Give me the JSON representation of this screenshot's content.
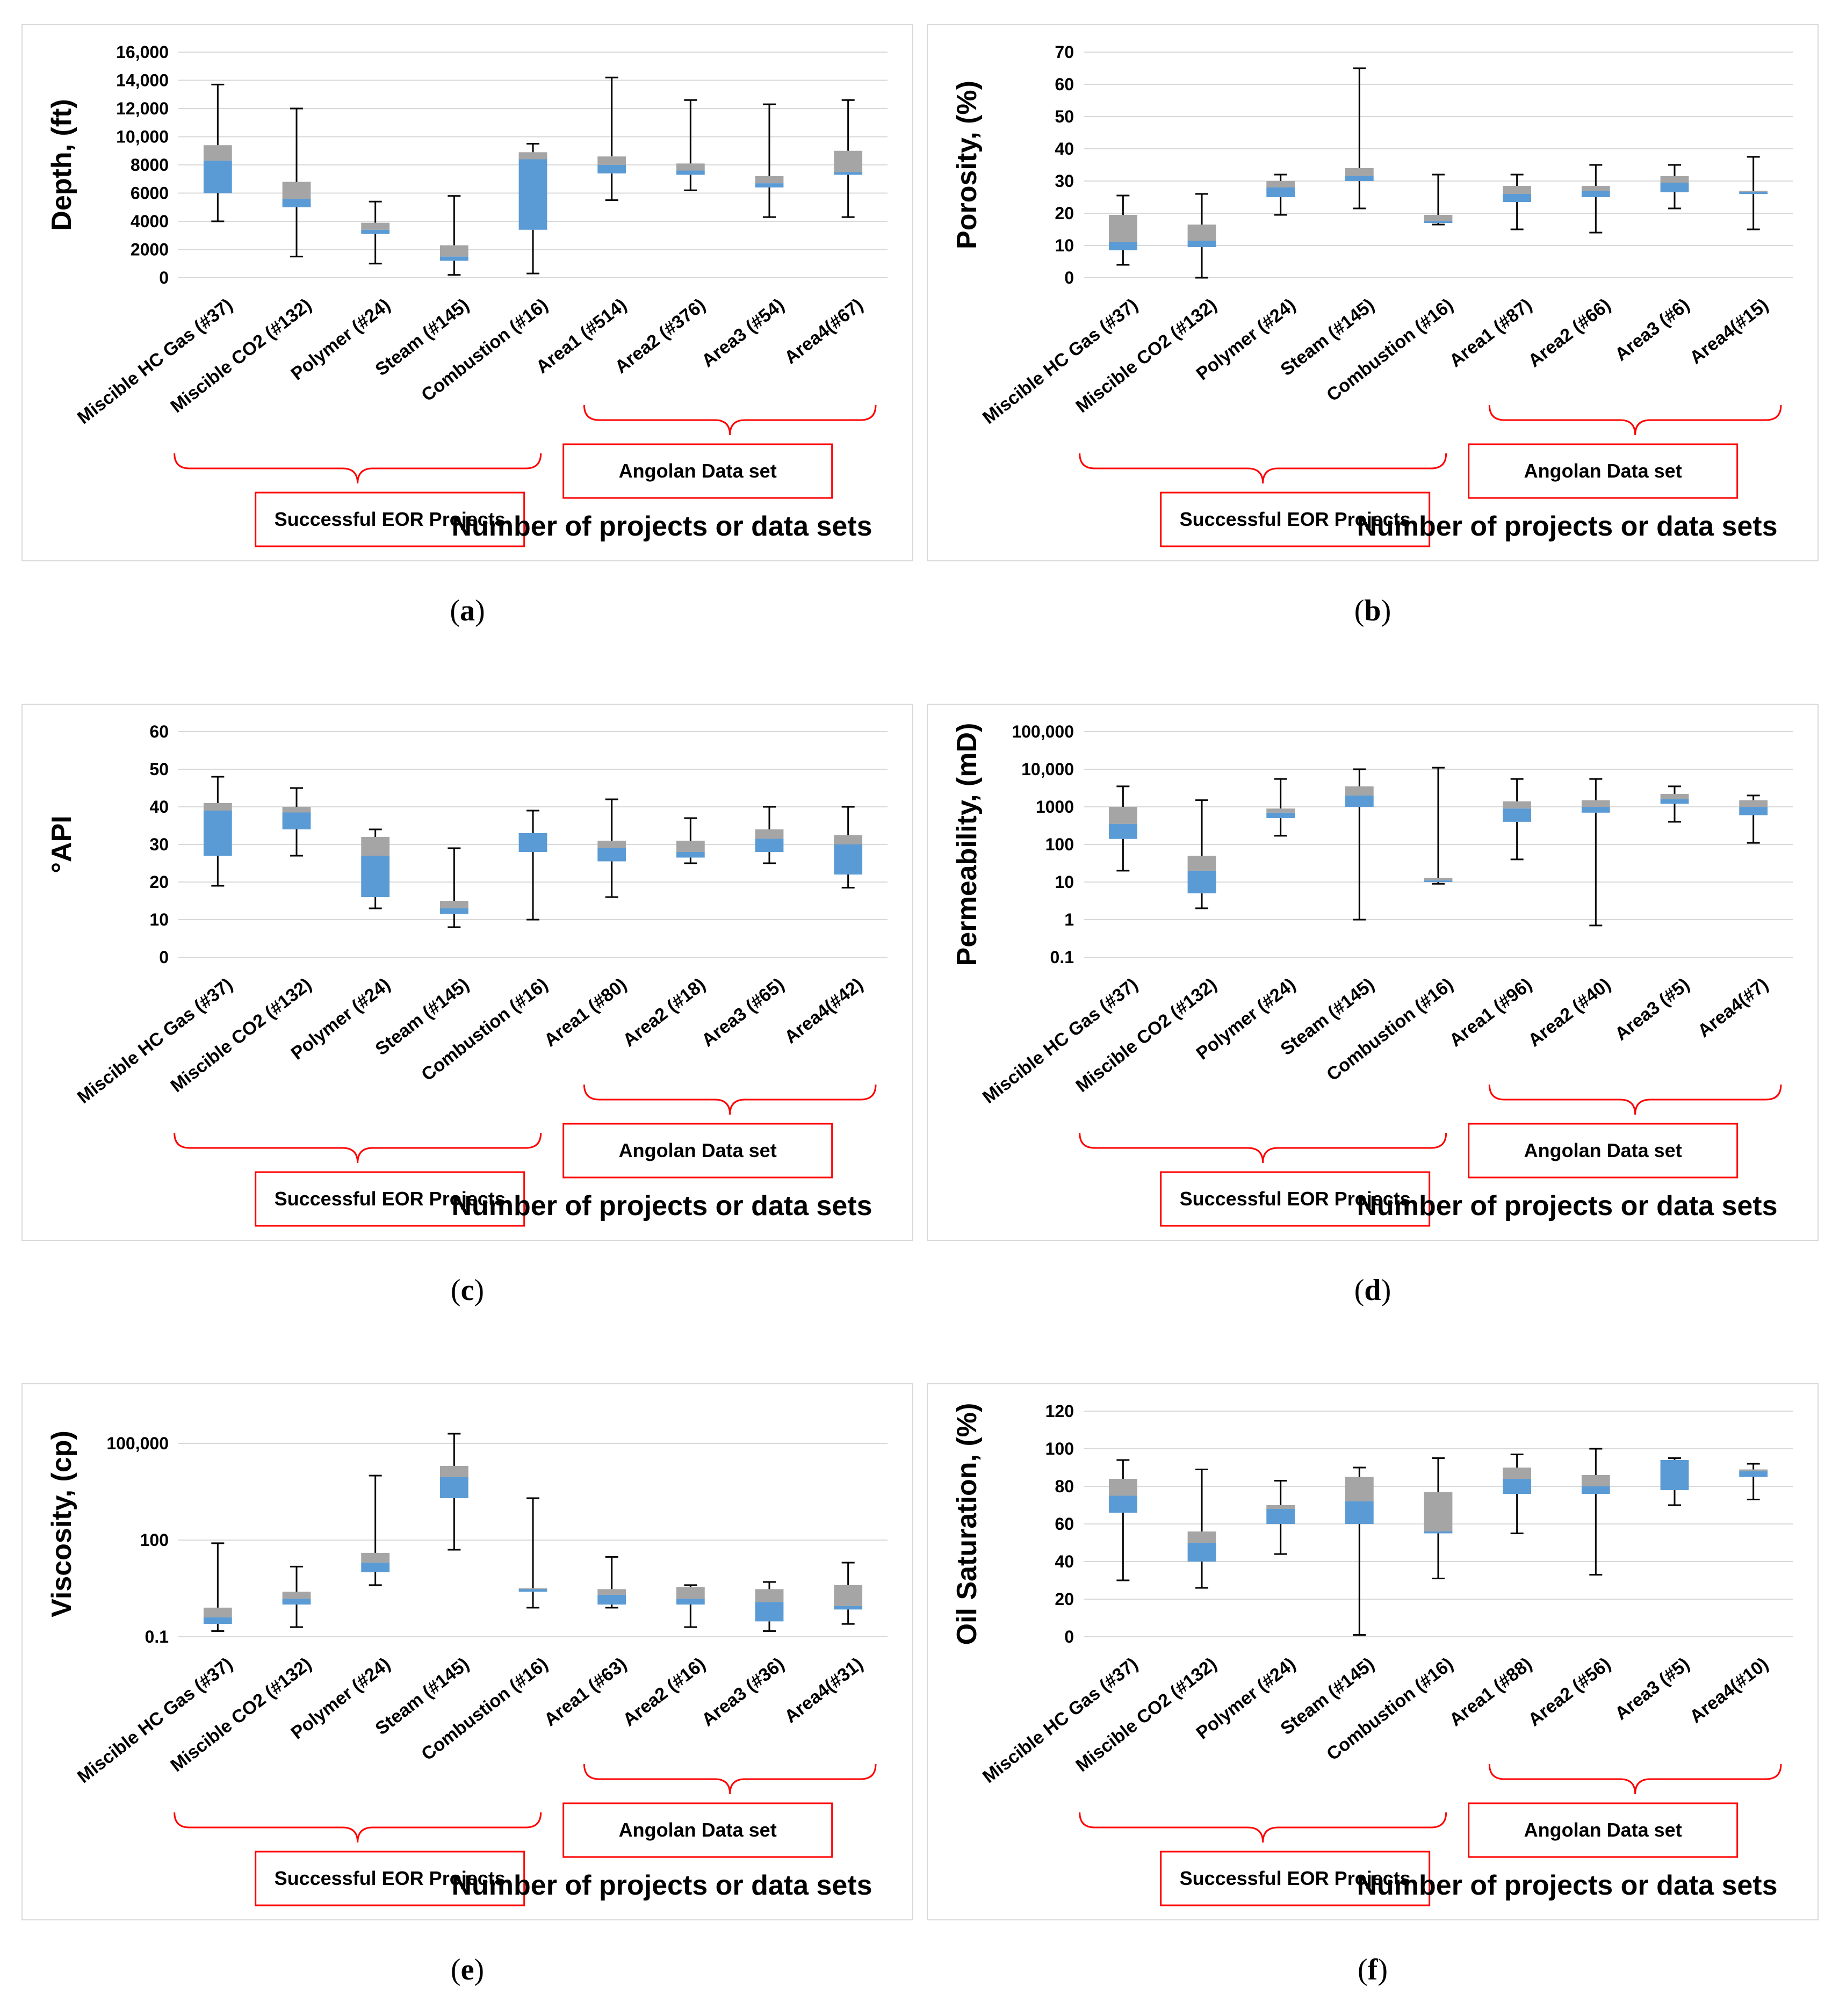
{
  "common": {
    "group_label_eor": "Successful EOR Projects",
    "group_label_angolan": "Angolan Data set",
    "xlabel": "Number of projects or data sets",
    "colors": {
      "upper_box": "#a5a5a5",
      "lower_box": "#5b9bd5",
      "whisker": "#000000",
      "grid": "#d9d9d9",
      "bracket": "#ff0000"
    }
  },
  "captions": {
    "a": "a",
    "b": "b",
    "c": "c",
    "d": "d",
    "e": "e",
    "f": "f"
  },
  "chart_data": [
    {
      "id": "a",
      "type": "box",
      "ylabel": "Depth, (ft)",
      "xlabel": "Number of projects or data sets",
      "yscale": "linear",
      "ylim": [
        0,
        16000
      ],
      "yticks": [
        0,
        2000,
        4000,
        6000,
        8000,
        10000,
        12000,
        14000,
        16000
      ],
      "ytick_labels": [
        "0",
        "2000",
        "4000",
        "6000",
        "8000",
        "10,000",
        "12,000",
        "14,000",
        "16,000"
      ],
      "categories": [
        "Miscible HC Gas (#37)",
        "Miscible CO2 (#132)",
        "Polymer (#24)",
        "Steam (#145)",
        "Combustion (#16)",
        "Area1 (#514)",
        "Area2 (#376)",
        "Area3 (#54)",
        "Area4(#67)"
      ],
      "min": [
        4000,
        1500,
        1000,
        200,
        300,
        5500,
        6200,
        4300,
        4300
      ],
      "q1": [
        6000,
        5000,
        3100,
        1200,
        3400,
        7400,
        7300,
        6400,
        7300
      ],
      "median": [
        8300,
        5600,
        3400,
        1500,
        8400,
        8000,
        7600,
        6700,
        7500
      ],
      "q3": [
        9400,
        6800,
        3900,
        2300,
        8900,
        8600,
        8100,
        7200,
        9000
      ],
      "max": [
        13700,
        12000,
        5400,
        5800,
        9500,
        14200,
        12600,
        12300,
        12600
      ]
    },
    {
      "id": "b",
      "type": "box",
      "ylabel": "Porosity, (%)",
      "xlabel": "Number of projects or data sets",
      "yscale": "linear",
      "ylim": [
        0,
        70
      ],
      "yticks": [
        0,
        10,
        20,
        30,
        40,
        50,
        60,
        70
      ],
      "ytick_labels": [
        "0",
        "10",
        "20",
        "30",
        "40",
        "50",
        "60",
        "70"
      ],
      "categories": [
        "Miscible HC Gas (#37)",
        "Miscible CO2 (#132)",
        "Polymer (#24)",
        "Steam (#145)",
        "Combustion (#16)",
        "Area1 (#87)",
        "Area2 (#66)",
        "Area3 (#6)",
        "Area4(#15)"
      ],
      "min": [
        4,
        0,
        19.5,
        21.5,
        16.5,
        15,
        14,
        21.5,
        15
      ],
      "q1": [
        8.5,
        9.5,
        25,
        30,
        17,
        23.5,
        25,
        26.5,
        26
      ],
      "median": [
        11,
        11.5,
        28,
        31.5,
        17.5,
        26,
        27,
        29.5,
        26.5
      ],
      "q3": [
        19.5,
        16.5,
        30,
        34,
        19.5,
        28.5,
        28.5,
        31.5,
        27
      ],
      "max": [
        25.5,
        26,
        32,
        65,
        32,
        32,
        35,
        35,
        37.5
      ]
    },
    {
      "id": "c",
      "type": "box",
      "ylabel": "°API",
      "xlabel": "Number of projects or data sets",
      "yscale": "linear",
      "ylim": [
        0,
        60
      ],
      "yticks": [
        0,
        10,
        20,
        30,
        40,
        50,
        60
      ],
      "ytick_labels": [
        "0",
        "10",
        "20",
        "30",
        "40",
        "50",
        "60"
      ],
      "categories": [
        "Miscible HC Gas (#37)",
        "Miscible CO2 (#132)",
        "Polymer (#24)",
        "Steam (#145)",
        "Combustion (#16)",
        "Area1 (#80)",
        "Area2 (#18)",
        "Area3 (#65)",
        "Area4(#42)"
      ],
      "min": [
        19,
        27,
        13,
        8,
        10,
        16,
        25,
        25,
        18.5
      ],
      "q1": [
        27,
        34,
        16,
        11.5,
        28,
        25.5,
        26.5,
        28,
        22
      ],
      "median": [
        39,
        38.5,
        27,
        13,
        33,
        29,
        28,
        31.5,
        30
      ],
      "q3": [
        41,
        40,
        32,
        15,
        33,
        31,
        31,
        34,
        32.5
      ],
      "max": [
        48,
        45,
        34,
        29,
        39,
        42,
        37,
        40,
        40
      ]
    },
    {
      "id": "d",
      "type": "box",
      "ylabel": "Permeability, (mD)",
      "xlabel": "Number of projects or data sets",
      "yscale": "log",
      "ylim": [
        0.1,
        100000
      ],
      "yticks": [
        0.1,
        1,
        10,
        100,
        1000,
        10000,
        100000
      ],
      "ytick_labels": [
        "0.1",
        "1",
        "10",
        "100",
        "1000",
        "10,000",
        "100,000"
      ],
      "categories": [
        "Miscible HC Gas (#37)",
        "Miscible CO2 (#132)",
        "Polymer (#24)",
        "Steam (#145)",
        "Combustion (#16)",
        "Area1 (#96)",
        "Area2 (#40)",
        "Area3 (#5)",
        "Area4(#7)"
      ],
      "min": [
        20,
        2,
        170,
        1,
        9,
        40,
        0.7,
        400,
        110
      ],
      "q1": [
        140,
        5,
        500,
        1000,
        10,
        400,
        700,
        1200,
        600
      ],
      "median": [
        350,
        20,
        700,
        2000,
        11,
        900,
        1000,
        1600,
        1000
      ],
      "q3": [
        1000,
        50,
        900,
        3500,
        13,
        1400,
        1500,
        2200,
        1500
      ],
      "max": [
        3500,
        1500,
        5500,
        10000,
        11000,
        5500,
        5500,
        3500,
        2000
      ]
    },
    {
      "id": "e",
      "type": "box",
      "ylabel": "Viscosity, (cp)",
      "xlabel": "Number of projects or data sets",
      "yscale": "log",
      "ylim": [
        0.1,
        1000000
      ],
      "yticks": [
        0.1,
        100,
        100000
      ],
      "ytick_labels": [
        "0.1",
        "100",
        "100,000"
      ],
      "categories": [
        "Miscible HC Gas (#37)",
        "Miscible CO2 (#132)",
        "Polymer (#24)",
        "Steam (#145)",
        "Combustion (#16)",
        "Area1 (#63)",
        "Area2 (#16)",
        "Area3 (#36)",
        "Area4(#31)"
      ],
      "min": [
        0.15,
        0.2,
        4,
        50,
        0.8,
        0.8,
        0.2,
        0.15,
        0.25
      ],
      "q1": [
        0.25,
        1,
        10,
        2000,
        2.5,
        1,
        1,
        0.3,
        0.7
      ],
      "median": [
        0.4,
        1.5,
        20,
        9000,
        3,
        2,
        1.5,
        1.2,
        0.9
      ],
      "q3": [
        0.8,
        2.5,
        40,
        20000,
        3.2,
        3,
        3.5,
        3,
        4
      ],
      "max": [
        80,
        15,
        10000,
        200000,
        2000,
        30,
        4,
        5,
        20
      ]
    },
    {
      "id": "f",
      "type": "box",
      "ylabel": "Oil Saturation, (%)",
      "xlabel": "Number of projects or data sets",
      "yscale": "linear",
      "ylim": [
        0,
        120
      ],
      "yticks": [
        0,
        20,
        40,
        60,
        80,
        100,
        120
      ],
      "ytick_labels": [
        "0",
        "20",
        "40",
        "60",
        "80",
        "100",
        "120"
      ],
      "categories": [
        "Miscible HC Gas (#37)",
        "Miscible CO2 (#132)",
        "Polymer (#24)",
        "Steam (#145)",
        "Combustion (#16)",
        "Area1 (#88)",
        "Area2 (#56)",
        "Area3 (#5)",
        "Area4(#10)"
      ],
      "min": [
        30,
        26,
        44,
        1,
        31,
        55,
        33,
        70,
        73
      ],
      "q1": [
        66,
        40,
        60,
        60,
        55,
        76,
        76,
        78,
        85
      ],
      "median": [
        75,
        50,
        68,
        72,
        56,
        84,
        80,
        94,
        88
      ],
      "q3": [
        84,
        56,
        70,
        85,
        77,
        90,
        86,
        94,
        89
      ],
      "max": [
        94,
        89,
        83,
        90,
        95,
        97,
        100,
        95,
        92
      ]
    }
  ]
}
